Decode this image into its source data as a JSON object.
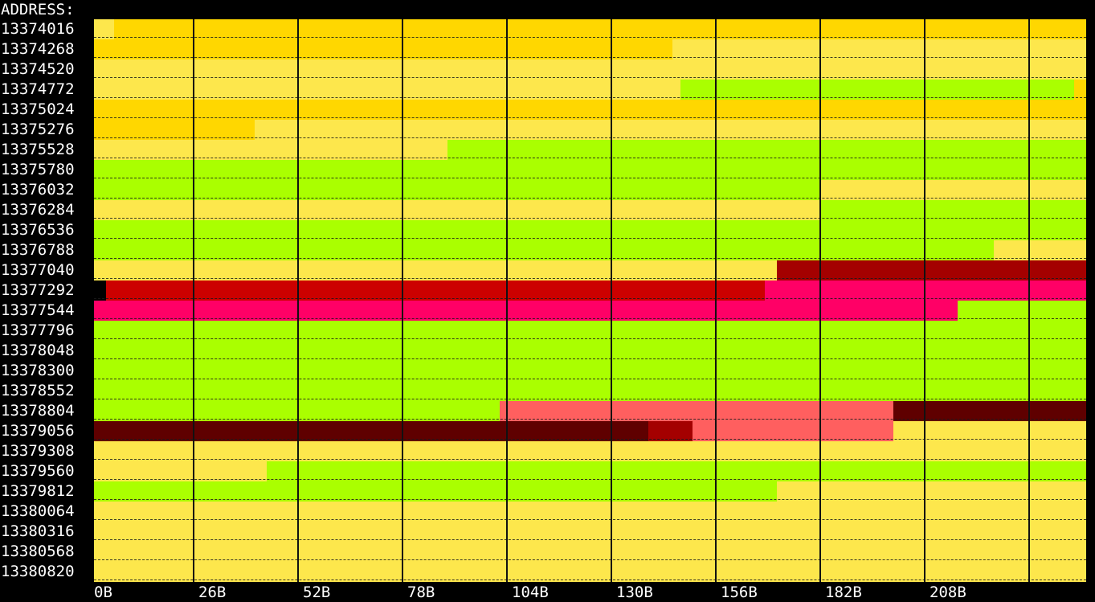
{
  "header": {
    "label": "ADDRESS:"
  },
  "addresses": [
    "13374016",
    "13374268",
    "13374520",
    "13374772",
    "13375024",
    "13375276",
    "13375528",
    "13375780",
    "13376032",
    "13376284",
    "13376536",
    "13376788",
    "13377040",
    "13377292",
    "13377544",
    "13377796",
    "13378048",
    "13378300",
    "13378552",
    "13378804",
    "13379056",
    "13379308",
    "13379560",
    "13379812",
    "13380064",
    "13380316",
    "13380568",
    "13380820"
  ],
  "x_ticks": [
    "0B",
    "26B",
    "52B",
    "78B",
    "104B",
    "130B",
    "156B",
    "182B",
    "208B"
  ],
  "bytes_per_row": 252,
  "bytes_per_tick": 26,
  "colors": {
    "pale_yellow": "#fde74c",
    "gold": "#ffd700",
    "green": "#aaff00",
    "dark_red": "#a40000",
    "red": "#cc0000",
    "pink": "#ff0066",
    "salmon": "#ff5f5f",
    "maroon": "#5f0000",
    "black": "#000000"
  },
  "rows": [
    [
      [
        0,
        5,
        "pale_yellow"
      ],
      [
        5,
        252,
        "gold"
      ]
    ],
    [
      [
        0,
        144,
        "gold"
      ],
      [
        144,
        252,
        "pale_yellow"
      ]
    ],
    [
      [
        0,
        252,
        "pale_yellow"
      ]
    ],
    [
      [
        0,
        146,
        "pale_yellow"
      ],
      [
        146,
        244,
        "green"
      ],
      [
        244,
        252,
        "gold"
      ]
    ],
    [
      [
        0,
        252,
        "gold"
      ]
    ],
    [
      [
        0,
        40,
        "gold"
      ],
      [
        40,
        252,
        "pale_yellow"
      ]
    ],
    [
      [
        0,
        88,
        "pale_yellow"
      ],
      [
        88,
        252,
        "green"
      ]
    ],
    [
      [
        0,
        252,
        "green"
      ]
    ],
    [
      [
        0,
        181,
        "green"
      ],
      [
        181,
        252,
        "pale_yellow"
      ]
    ],
    [
      [
        0,
        181,
        "pale_yellow"
      ],
      [
        181,
        252,
        "green"
      ]
    ],
    [
      [
        0,
        252,
        "green"
      ]
    ],
    [
      [
        0,
        224,
        "green"
      ],
      [
        224,
        252,
        "pale_yellow"
      ]
    ],
    [
      [
        0,
        170,
        "pale_yellow"
      ],
      [
        170,
        252,
        "dark_red"
      ]
    ],
    [
      [
        0,
        3,
        "black"
      ],
      [
        3,
        167,
        "red"
      ],
      [
        167,
        252,
        "pink"
      ]
    ],
    [
      [
        0,
        215,
        "pink"
      ],
      [
        215,
        252,
        "green"
      ]
    ],
    [
      [
        0,
        252,
        "green"
      ]
    ],
    [
      [
        0,
        252,
        "green"
      ]
    ],
    [
      [
        0,
        252,
        "green"
      ]
    ],
    [
      [
        0,
        252,
        "green"
      ]
    ],
    [
      [
        0,
        101,
        "green"
      ],
      [
        101,
        199,
        "salmon"
      ],
      [
        199,
        252,
        "maroon"
      ]
    ],
    [
      [
        0,
        138,
        "maroon"
      ],
      [
        138,
        149,
        "dark_red"
      ],
      [
        149,
        199,
        "salmon"
      ],
      [
        199,
        252,
        "pale_yellow"
      ]
    ],
    [
      [
        0,
        252,
        "pale_yellow"
      ]
    ],
    [
      [
        0,
        43,
        "pale_yellow"
      ],
      [
        43,
        252,
        "green"
      ]
    ],
    [
      [
        0,
        170,
        "green"
      ],
      [
        170,
        252,
        "pale_yellow"
      ]
    ],
    [
      [
        0,
        252,
        "pale_yellow"
      ]
    ],
    [
      [
        0,
        252,
        "pale_yellow"
      ]
    ],
    [
      [
        0,
        252,
        "pale_yellow"
      ]
    ],
    [
      [
        0,
        252,
        "pale_yellow"
      ]
    ]
  ]
}
